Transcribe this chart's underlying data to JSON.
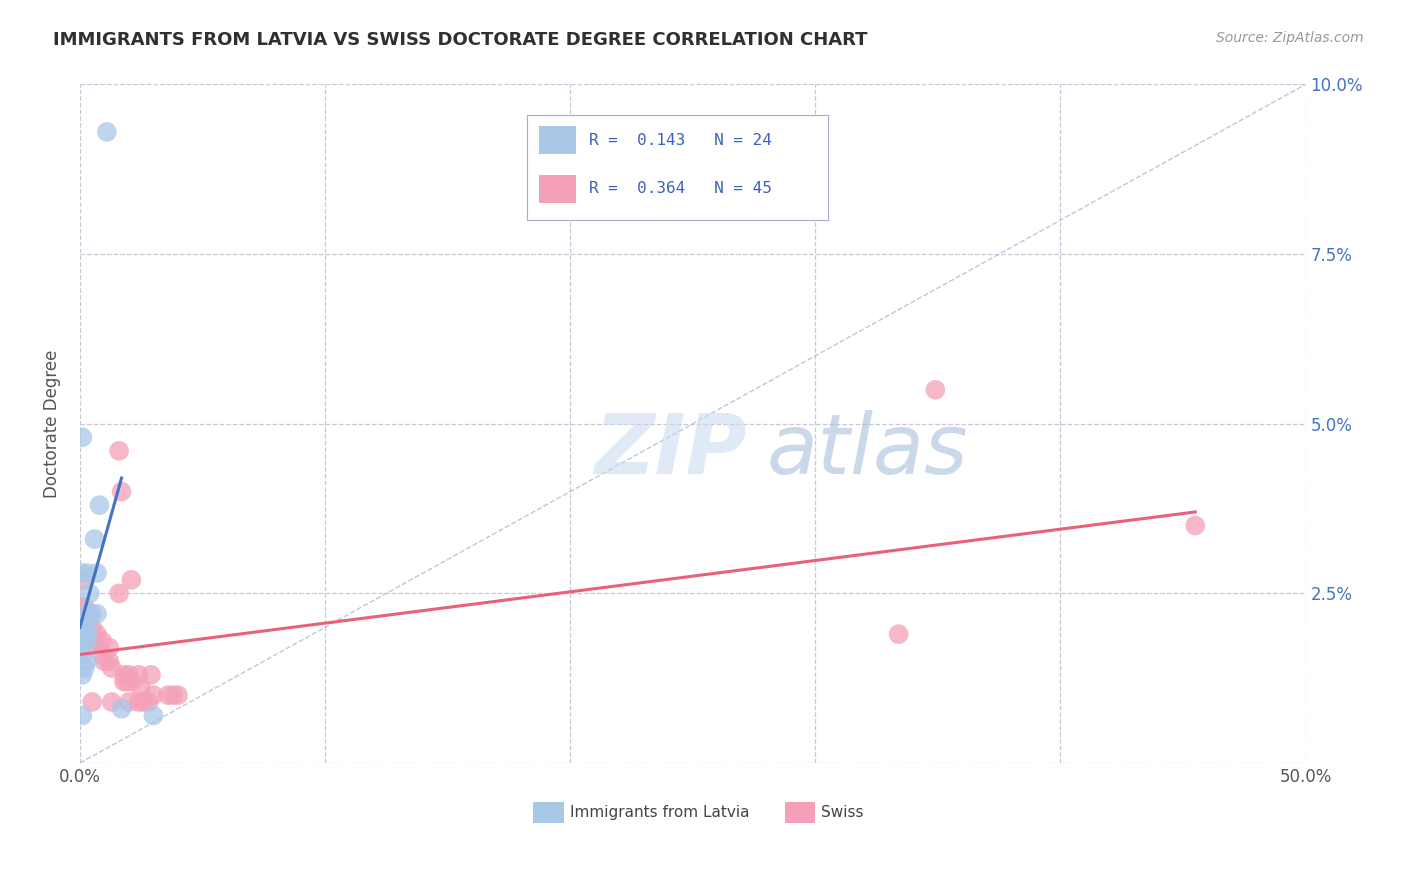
{
  "title": "IMMIGRANTS FROM LATVIA VS SWISS DOCTORATE DEGREE CORRELATION CHART",
  "source": "Source: ZipAtlas.com",
  "ylabel": "Doctorate Degree",
  "xlim": [
    0.0,
    0.5
  ],
  "ylim": [
    0.0,
    0.1
  ],
  "xticks": [
    0.0,
    0.1,
    0.2,
    0.3,
    0.4,
    0.5
  ],
  "xticklabels": [
    "0.0%",
    "",
    "",
    "",
    "",
    "50.0%"
  ],
  "yticks": [
    0.0,
    0.025,
    0.05,
    0.075,
    0.1
  ],
  "ytick_right_labels": [
    "",
    "2.5%",
    "5.0%",
    "7.5%",
    "10.0%"
  ],
  "legend_r1": "R =  0.143",
  "legend_n1": "N = 24",
  "legend_r2": "R =  0.364",
  "legend_n2": "N = 45",
  "color_blue": "#a8c8e8",
  "color_pink": "#f4a0b8",
  "line_blue": "#4472c4",
  "line_pink": "#e8607a",
  "background_color": "#ffffff",
  "grid_color": "#c8c8d8",
  "title_color": "#303030",
  "right_tick_color": "#4472c4",
  "legend_text_color": "#4060c0",
  "blue_scatter": [
    [
      0.011,
      0.093
    ],
    [
      0.001,
      0.048
    ],
    [
      0.001,
      0.028
    ],
    [
      0.006,
      0.033
    ],
    [
      0.007,
      0.028
    ],
    [
      0.003,
      0.028
    ],
    [
      0.004,
      0.025
    ],
    [
      0.007,
      0.022
    ],
    [
      0.005,
      0.022
    ],
    [
      0.002,
      0.022
    ],
    [
      0.002,
      0.021
    ],
    [
      0.003,
      0.02
    ],
    [
      0.003,
      0.019
    ],
    [
      0.001,
      0.019
    ],
    [
      0.003,
      0.018
    ],
    [
      0.001,
      0.017
    ],
    [
      0.001,
      0.016
    ],
    [
      0.003,
      0.015
    ],
    [
      0.002,
      0.014
    ],
    [
      0.001,
      0.013
    ],
    [
      0.008,
      0.038
    ],
    [
      0.017,
      0.008
    ],
    [
      0.03,
      0.007
    ],
    [
      0.001,
      0.007
    ]
  ],
  "pink_scatter": [
    [
      0.001,
      0.02
    ],
    [
      0.001,
      0.02
    ],
    [
      0.002,
      0.027
    ],
    [
      0.002,
      0.023
    ],
    [
      0.003,
      0.022
    ],
    [
      0.004,
      0.022
    ],
    [
      0.004,
      0.022
    ],
    [
      0.003,
      0.021
    ],
    [
      0.005,
      0.02
    ],
    [
      0.007,
      0.019
    ],
    [
      0.006,
      0.018
    ],
    [
      0.006,
      0.018
    ],
    [
      0.009,
      0.018
    ],
    [
      0.012,
      0.017
    ],
    [
      0.009,
      0.016
    ],
    [
      0.01,
      0.015
    ],
    [
      0.012,
      0.015
    ],
    [
      0.013,
      0.014
    ],
    [
      0.018,
      0.013
    ],
    [
      0.018,
      0.012
    ],
    [
      0.019,
      0.012
    ],
    [
      0.02,
      0.013
    ],
    [
      0.021,
      0.012
    ],
    [
      0.024,
      0.013
    ],
    [
      0.025,
      0.011
    ],
    [
      0.029,
      0.013
    ],
    [
      0.03,
      0.01
    ],
    [
      0.036,
      0.01
    ],
    [
      0.038,
      0.01
    ],
    [
      0.04,
      0.01
    ],
    [
      0.016,
      0.046
    ],
    [
      0.017,
      0.04
    ],
    [
      0.016,
      0.025
    ],
    [
      0.021,
      0.027
    ],
    [
      0.026,
      0.009
    ],
    [
      0.028,
      0.009
    ],
    [
      0.001,
      0.023
    ],
    [
      0.003,
      0.02
    ],
    [
      0.005,
      0.009
    ],
    [
      0.013,
      0.009
    ],
    [
      0.02,
      0.009
    ],
    [
      0.024,
      0.009
    ],
    [
      0.334,
      0.019
    ],
    [
      0.349,
      0.055
    ],
    [
      0.455,
      0.035
    ]
  ],
  "blue_line_x": [
    0.0,
    0.017
  ],
  "blue_line_y": [
    0.02,
    0.042
  ],
  "pink_line_x": [
    0.0,
    0.455
  ],
  "pink_line_y": [
    0.016,
    0.037
  ]
}
